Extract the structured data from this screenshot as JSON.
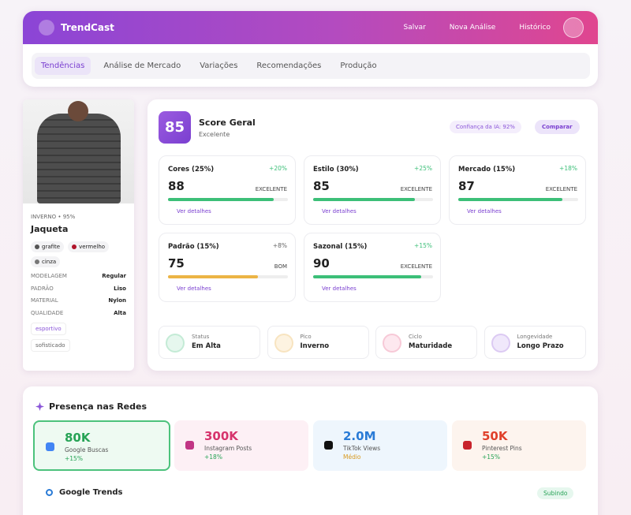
{
  "header": {
    "brand": "TrendCast",
    "actions": [
      "Salvar",
      "Nova Análise",
      "Histórico"
    ]
  },
  "tabs": [
    "Tendências",
    "Análise de Mercado",
    "Variações",
    "Recomendações",
    "Produção"
  ],
  "product": {
    "season": "INVERNO • 95%",
    "name": "Jaqueta",
    "colors": [
      {
        "name": "grafite",
        "color": "#555"
      },
      {
        "name": "vermelho",
        "color": "#b0142a"
      },
      {
        "name": "cinza",
        "color": "#777"
      }
    ],
    "attributes": [
      [
        "MODELAGEM",
        "Regular"
      ],
      [
        "PADRÃO",
        "Liso"
      ],
      [
        "MATERIAL",
        "Nylon"
      ],
      [
        "QUALIDADE",
        "Alta"
      ]
    ],
    "tags": [
      "esportivo",
      "sofisticado"
    ]
  },
  "score": {
    "value": 85,
    "title": "Score Geral",
    "rating": "Excelente",
    "confidence": "Confiança da IA: 92%",
    "compare": "Comparar"
  },
  "metrics": [
    {
      "name": "Cores (25%)",
      "trend": "+20%",
      "value": 88,
      "rating": "EXCELENTE",
      "details": "Ver detalhes",
      "color": "#3cbf78",
      "trend_color": "#3cbf78"
    },
    {
      "name": "Estilo (30%)",
      "trend": "+25%",
      "value": 85,
      "rating": "EXCELENTE",
      "details": "Ver detalhes",
      "color": "#3cbf78",
      "trend_color": "#3cbf78"
    },
    {
      "name": "Mercado (15%)",
      "trend": "+18%",
      "value": 87,
      "rating": "EXCELENTE",
      "details": "Ver detalhes",
      "color": "#3cbf78",
      "trend_color": "#3cbf78"
    },
    {
      "name": "Padrão (15%)",
      "trend": "+8%",
      "value": 75,
      "rating": "BOM",
      "details": "Ver detalhes",
      "color": "#ecb445",
      "trend_color": "#666"
    },
    {
      "name": "Sazonal (15%)",
      "trend": "+15%",
      "value": 90,
      "rating": "EXCELENTE",
      "details": "Ver detalhes",
      "color": "#3cbf78",
      "trend_color": "#3cbf78"
    }
  ],
  "status": [
    {
      "label": "Status",
      "value": "Em Alta",
      "color": "#3cbf78",
      "background": "#e6f7ee"
    },
    {
      "label": "Pico",
      "value": "Inverno",
      "color": "#e8a83a",
      "background": "#fdf3e1"
    },
    {
      "label": "Ciclo",
      "value": "Maturidade",
      "color": "#e0507a",
      "background": "#fde8ef"
    },
    {
      "label": "Longevidade",
      "value": "Longo Prazo",
      "color": "#8a55d8",
      "background": "#f0e8fb"
    }
  ],
  "social": {
    "title": "Presença nas Redes",
    "cards": [
      {
        "value": "80K",
        "label": "Google Buscas",
        "change": "+15%",
        "color": "#27a356",
        "background": "#eefaf2",
        "icon": "#4285f4"
      },
      {
        "value": "300K",
        "label": "Instagram Posts",
        "change": "+18%",
        "color": "#d6336c",
        "background": "#fdf0f5",
        "icon": "#c13584"
      },
      {
        "value": "2.0M",
        "label": "TikTok Views",
        "change": "Médio",
        "color": "#2a7bd6",
        "background": "#eef6fd",
        "icon": "#111"
      },
      {
        "value": "50K",
        "label": "Pinterest Pins",
        "change": "+15%",
        "color": "#e0402a",
        "background": "#fdf4ee",
        "icon": "#c8232c"
      }
    ]
  },
  "trends": {
    "title": "Google Trends",
    "badge": "Subindo"
  }
}
